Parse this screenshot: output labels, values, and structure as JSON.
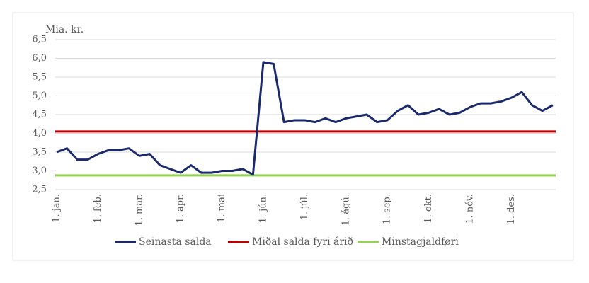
{
  "chart_data": {
    "type": "line",
    "y_label": "Mia. kr.",
    "categories": [
      "1. jan.",
      null,
      null,
      null,
      "1. feb.",
      null,
      null,
      null,
      "1. mar.",
      null,
      null,
      null,
      "1. apr.",
      null,
      null,
      null,
      "1. mai",
      null,
      null,
      null,
      "1. jún.",
      null,
      null,
      null,
      "1. júl.",
      null,
      null,
      null,
      "1. ágú.",
      null,
      null,
      null,
      "1. sep.",
      null,
      null,
      null,
      "1. okt.",
      null,
      null,
      null,
      "1. nóv.",
      null,
      null,
      null,
      "1. des.",
      null,
      null,
      null,
      null
    ],
    "series": [
      {
        "name": "Seinasta salda",
        "color": "#1b2a6b",
        "values": [
          3.5,
          3.6,
          3.3,
          3.3,
          3.45,
          3.55,
          3.55,
          3.6,
          3.4,
          3.45,
          3.15,
          3.05,
          2.95,
          3.15,
          2.95,
          2.95,
          3.0,
          3.0,
          3.05,
          2.9,
          5.9,
          5.85,
          4.3,
          4.35,
          4.35,
          4.3,
          4.4,
          4.3,
          4.4,
          4.45,
          4.5,
          4.3,
          4.35,
          4.6,
          4.75,
          4.5,
          4.55,
          4.65,
          4.5,
          4.55,
          4.7,
          4.8,
          4.8,
          4.85,
          4.95,
          5.1,
          4.75,
          4.6,
          4.75
        ]
      },
      {
        "name": "Miðal salda fyri árið",
        "color": "#c00000",
        "values": [
          4.05,
          4.05,
          4.05,
          4.05,
          4.05,
          4.05,
          4.05,
          4.05,
          4.05,
          4.05,
          4.05,
          4.05,
          4.05,
          4.05,
          4.05,
          4.05,
          4.05,
          4.05,
          4.05,
          4.05,
          4.05,
          4.05,
          4.05,
          4.05,
          4.05,
          4.05,
          4.05,
          4.05,
          4.05,
          4.05,
          4.05,
          4.05,
          4.05,
          4.05,
          4.05,
          4.05,
          4.05,
          4.05,
          4.05,
          4.05,
          4.05,
          4.05,
          4.05,
          4.05,
          4.05,
          4.05,
          4.05,
          4.05,
          4.05
        ]
      },
      {
        "name": "Minstagjaldføri",
        "color": "#92d050",
        "values": [
          2.88,
          2.88,
          2.88,
          2.88,
          2.88,
          2.88,
          2.88,
          2.88,
          2.88,
          2.88,
          2.88,
          2.88,
          2.88,
          2.88,
          2.88,
          2.88,
          2.88,
          2.88,
          2.88,
          2.88,
          2.88,
          2.88,
          2.88,
          2.88,
          2.88,
          2.88,
          2.88,
          2.88,
          2.88,
          2.88,
          2.88,
          2.88,
          2.88,
          2.88,
          2.88,
          2.88,
          2.88,
          2.88,
          2.88,
          2.88,
          2.88,
          2.88,
          2.88,
          2.88,
          2.88,
          2.88,
          2.88,
          2.88,
          2.88
        ]
      }
    ],
    "ylim": [
      2.5,
      6.5
    ],
    "yticks": [
      {
        "value": 2.5,
        "label": "2,5"
      },
      {
        "value": 3.0,
        "label": "3,0"
      },
      {
        "value": 3.5,
        "label": "3,5"
      },
      {
        "value": 4.0,
        "label": "4,0"
      },
      {
        "value": 4.5,
        "label": "4,5"
      },
      {
        "value": 5.0,
        "label": "5,0"
      },
      {
        "value": 5.5,
        "label": "5,5"
      },
      {
        "value": 6.0,
        "label": "6,0"
      },
      {
        "value": 6.5,
        "label": "6,5"
      }
    ],
    "grid": true,
    "legend": "bottom"
  }
}
